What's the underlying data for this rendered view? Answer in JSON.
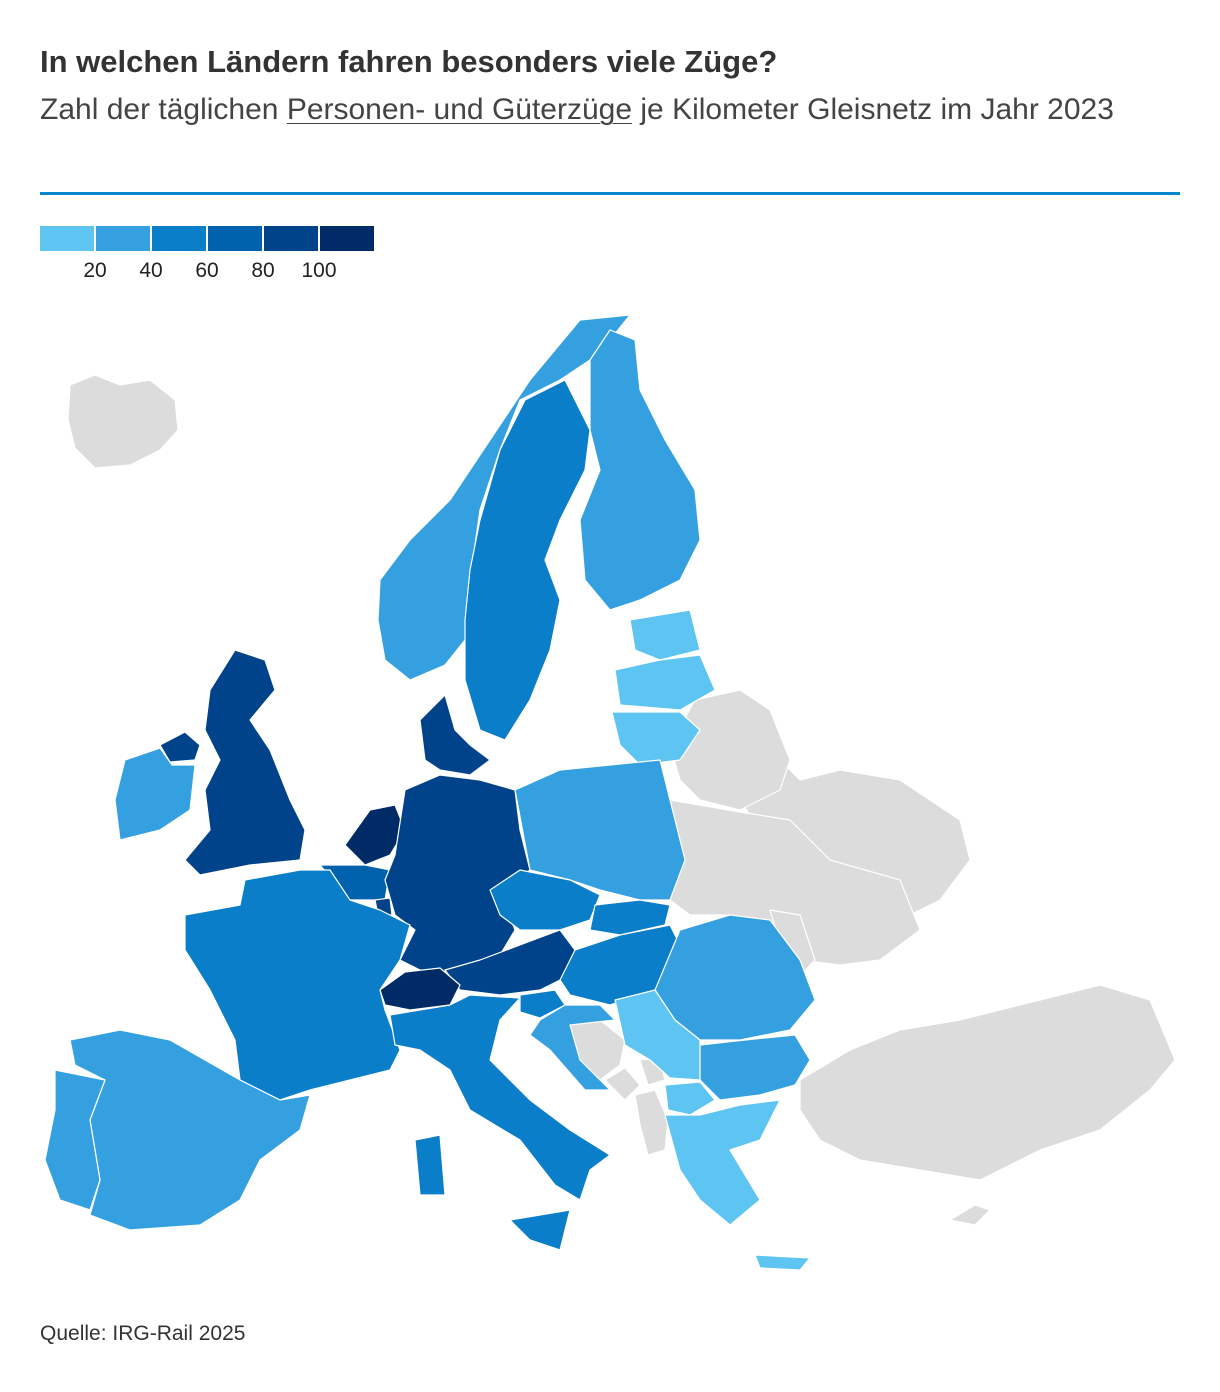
{
  "header": {
    "title": "In welchen Ländern fahren besonders viele Züge?",
    "subtitle_before": "Zahl der täglichen ",
    "subtitle_link": "Personen- und Güterzüge",
    "subtitle_after": " je Kilometer Gleisnetz im Jahr 2023"
  },
  "legend": {
    "colors": [
      "#5ec4f1",
      "#35a0df",
      "#0a7ec8",
      "#0062ad",
      "#00438a",
      "#002b66"
    ],
    "ticks": [
      "20",
      "40",
      "60",
      "80",
      "100"
    ]
  },
  "map_colors": {
    "no_data": "#dcdcdc",
    "class_1": "#5ec4f1",
    "class_2": "#35a0df",
    "class_3": "#0a7ec8",
    "class_4": "#0062ad",
    "class_5": "#00438a",
    "class_6": "#002b66"
  },
  "map_classes": {
    "iceland": "no_data",
    "norway": "class_2",
    "sweden": "class_3",
    "finland": "class_2",
    "estonia": "class_1",
    "latvia": "class_1",
    "lithuania": "class_1",
    "uk": "class_5",
    "northern-ireland": "class_5",
    "ireland": "class_2",
    "denmark": "class_5",
    "netherlands": "class_6",
    "belgium": "class_4",
    "luxembourg": "class_5",
    "germany": "class_5",
    "poland": "class_2",
    "czechia": "class_3",
    "slovakia": "class_3",
    "austria": "class_5",
    "switzerland": "class_6",
    "hungary": "class_3",
    "slovenia": "class_3",
    "croatia": "class_2",
    "france": "class_3",
    "italy": "class_3",
    "spain": "class_2",
    "portugal": "class_2",
    "romania": "class_2",
    "bulgaria": "class_2",
    "serbia": "class_1",
    "north-macedonia": "class_1",
    "greece": "class_1",
    "bosnia": "no_data",
    "montenegro": "no_data",
    "albania": "no_data",
    "kosovo": "no_data",
    "belarus": "no_data",
    "ukraine": "no_data",
    "moldova": "no_data",
    "russia": "no_data",
    "turkey": "no_data",
    "cyprus": "no_data"
  },
  "footer": {
    "source": "Quelle: IRG-Rail 2025"
  }
}
